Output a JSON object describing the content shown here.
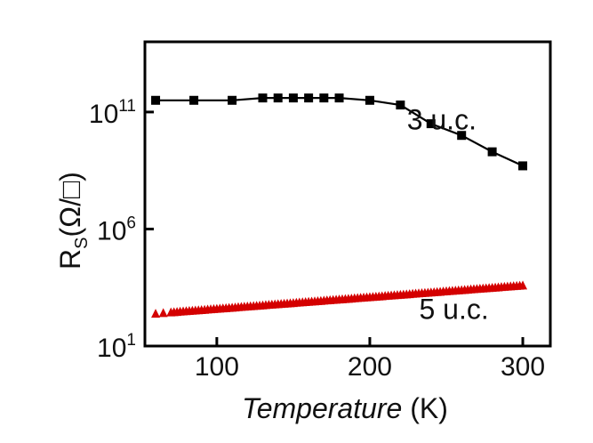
{
  "chart_data": {
    "type": "scatter",
    "title": "",
    "xlabel": "Temperature (K)",
    "xlabel_italic_part": "Temperature",
    "xlabel_unit_part": " (K)",
    "ylabel": "Rs(Ω/□)",
    "ylabel_main": "R",
    "ylabel_sub": "S",
    "ylabel_rest": "(Ω/□)",
    "x_scale": "linear",
    "y_scale": "log",
    "xlim": [
      53,
      318
    ],
    "ylim_exponent": [
      1,
      14
    ],
    "x_ticks": [
      100,
      200,
      300
    ],
    "y_ticks": [
      {
        "base": "10",
        "exp": "1",
        "value": 10
      },
      {
        "base": "10",
        "exp": "6",
        "value": 1000000
      },
      {
        "base": "10",
        "exp": "11",
        "value": 100000000000
      }
    ],
    "grid": false,
    "series": [
      {
        "name": "3 u.c.",
        "color": "#000000",
        "marker": "square",
        "line": true,
        "x": [
          60,
          85,
          110,
          130,
          140,
          150,
          160,
          170,
          180,
          200,
          220,
          240,
          260,
          280,
          300
        ],
        "log10_y": [
          11.5,
          11.5,
          11.5,
          11.6,
          11.6,
          11.6,
          11.6,
          11.6,
          11.6,
          11.5,
          11.3,
          10.5,
          10.0,
          9.3,
          8.7
        ]
      },
      {
        "name": "5 u.c.",
        "color": "#d40000",
        "marker": "triangle",
        "line": false,
        "x": [
          60,
          65,
          70,
          72,
          74,
          76,
          78,
          80,
          82,
          84,
          86,
          88,
          90,
          92,
          94,
          96,
          98,
          100,
          102,
          104,
          106,
          108,
          110,
          112,
          114,
          116,
          118,
          120,
          122,
          124,
          126,
          128,
          130,
          132,
          134,
          136,
          138,
          140,
          142,
          144,
          146,
          148,
          150,
          152,
          154,
          156,
          158,
          160,
          162,
          164,
          166,
          168,
          170,
          172,
          174,
          176,
          178,
          180,
          182,
          184,
          186,
          188,
          190,
          192,
          194,
          196,
          198,
          200,
          202,
          204,
          206,
          208,
          210,
          212,
          214,
          216,
          218,
          220,
          222,
          224,
          226,
          228,
          230,
          232,
          234,
          236,
          238,
          240,
          242,
          244,
          246,
          248,
          250,
          252,
          254,
          256,
          258,
          260,
          262,
          264,
          266,
          268,
          270,
          272,
          274,
          276,
          278,
          280,
          282,
          284,
          286,
          288,
          290,
          292,
          294,
          296,
          298,
          300
        ],
        "log10_y": [
          2.4,
          2.43,
          2.46,
          2.47,
          2.48,
          2.49,
          2.5,
          2.51,
          2.52,
          2.53,
          2.54,
          2.55,
          2.56,
          2.57,
          2.58,
          2.59,
          2.6,
          2.61,
          2.62,
          2.63,
          2.64,
          2.65,
          2.66,
          2.67,
          2.68,
          2.69,
          2.7,
          2.71,
          2.72,
          2.73,
          2.74,
          2.75,
          2.76,
          2.77,
          2.78,
          2.79,
          2.8,
          2.81,
          2.82,
          2.83,
          2.84,
          2.85,
          2.86,
          2.87,
          2.88,
          2.89,
          2.9,
          2.91,
          2.92,
          2.93,
          2.94,
          2.95,
          2.96,
          2.97,
          2.98,
          2.99,
          3.0,
          3.01,
          3.02,
          3.03,
          3.04,
          3.05,
          3.06,
          3.07,
          3.08,
          3.09,
          3.1,
          3.11,
          3.12,
          3.13,
          3.14,
          3.15,
          3.16,
          3.17,
          3.18,
          3.19,
          3.2,
          3.21,
          3.22,
          3.23,
          3.24,
          3.25,
          3.26,
          3.27,
          3.28,
          3.29,
          3.3,
          3.31,
          3.32,
          3.33,
          3.34,
          3.35,
          3.36,
          3.37,
          3.38,
          3.39,
          3.4,
          3.41,
          3.42,
          3.43,
          3.44,
          3.45,
          3.46,
          3.47,
          3.48,
          3.49,
          3.5,
          3.51,
          3.52,
          3.53,
          3.54,
          3.55,
          3.56,
          3.57,
          3.58,
          3.59,
          3.6,
          3.61
        ]
      }
    ],
    "annotations": [
      {
        "text": "3 u.c.",
        "x": 247,
        "log10_y": 10.25
      },
      {
        "text": "5 u.c.",
        "x": 255,
        "log10_y": 2.15
      }
    ]
  }
}
